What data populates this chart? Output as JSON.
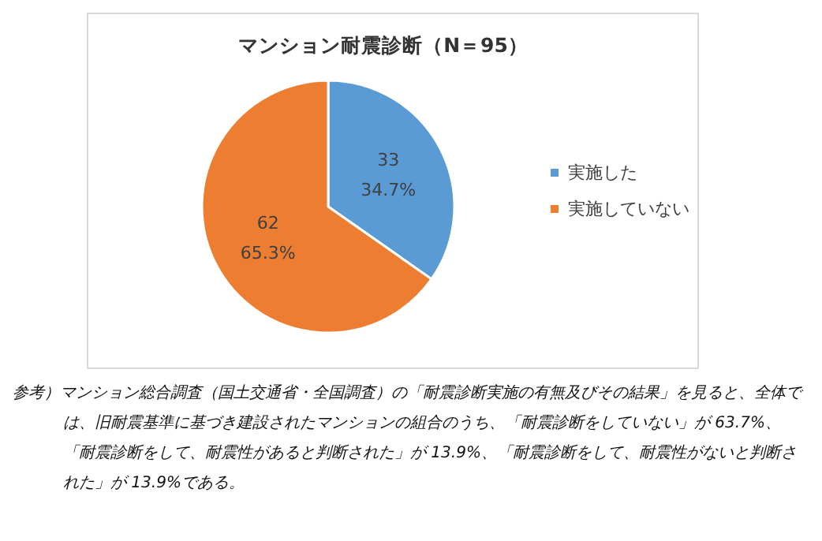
{
  "chart_data": {
    "type": "pie",
    "title": "マンション耐震診断（N＝95）",
    "categories": [
      "実施した",
      "実施していない"
    ],
    "values": [
      33,
      62
    ],
    "colors": [
      "#5b9bd5",
      "#ed7d31"
    ],
    "value_labels": [
      "33\n34.7%",
      "62\n65.3%"
    ],
    "legend": "right",
    "annotations": [
      "参考）マンション総合調査（国土交通省・全国調査）の「耐震診断実施の有無及びその結果」を見ると、全体では、旧耐震基準に基づき建設されたマンションの組合のうち、「耐震診断をしていない」が 63.7%、「耐震診断をして、耐震性があると判断された」が 13.9%、「耐震診断をして、耐震性がないと判断された」が 13.9%である。"
    ]
  }
}
